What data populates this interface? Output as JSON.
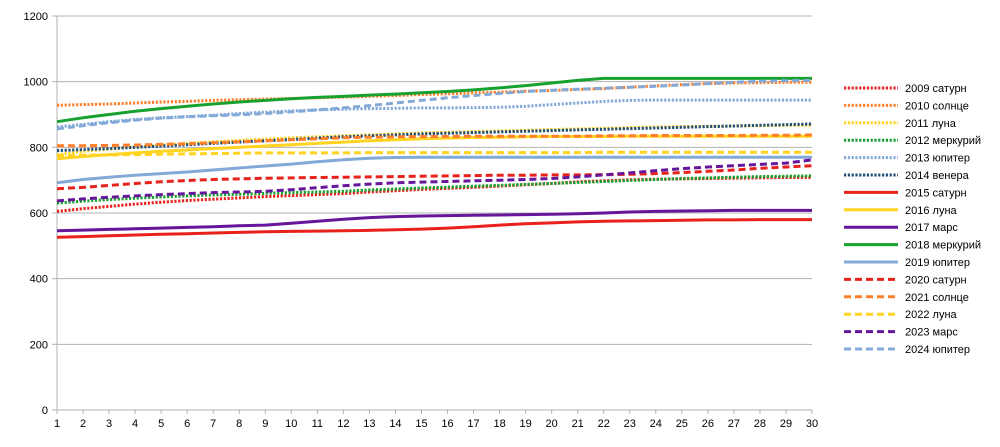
{
  "chart_data": {
    "type": "line",
    "title": "",
    "xlabel": "",
    "ylabel": "",
    "x": [
      1,
      2,
      3,
      4,
      5,
      6,
      7,
      8,
      9,
      10,
      11,
      12,
      13,
      14,
      15,
      16,
      17,
      18,
      19,
      20,
      21,
      22,
      23,
      24,
      25,
      26,
      27,
      28,
      29,
      30
    ],
    "xlim": [
      1,
      30
    ],
    "ylim": [
      0,
      1200
    ],
    "yticks": [
      0,
      200,
      400,
      600,
      800,
      1000,
      1200
    ],
    "grid": "horizontal",
    "legend_position": "right",
    "series": [
      {
        "name": "2009 сатурн",
        "color": "#e8211b",
        "style": "dotted",
        "values": [
          605,
          613,
          620,
          627,
          633,
          638,
          642,
          646,
          650,
          653,
          656,
          659,
          664,
          668,
          672,
          675,
          678,
          682,
          686,
          690,
          695,
          698,
          701,
          703,
          704,
          705,
          706,
          707,
          708,
          708
        ]
      },
      {
        "name": "2010 солнце",
        "color": "#ff7f2a",
        "style": "dotted",
        "values": [
          928,
          930,
          932,
          935,
          938,
          940,
          943,
          945,
          947,
          949,
          951,
          953,
          955,
          958,
          961,
          963,
          966,
          968,
          971,
          973,
          976,
          979,
          983,
          987,
          991,
          994,
          996,
          997,
          998,
          998
        ]
      },
      {
        "name": "2011 луна",
        "color": "#ffd320",
        "style": "dotted",
        "values": [
          777,
          788,
          795,
          801,
          807,
          812,
          817,
          821,
          825,
          829,
          832,
          835,
          838,
          841,
          844,
          846,
          848,
          850,
          852,
          854,
          856,
          858,
          860,
          862,
          863,
          864,
          865,
          866,
          867,
          867
        ]
      },
      {
        "name": "2012 меркурий",
        "color": "#17a12e",
        "style": "dotted",
        "values": [
          630,
          636,
          641,
          645,
          649,
          652,
          655,
          657,
          660,
          662,
          664,
          666,
          670,
          673,
          676,
          679,
          682,
          684,
          687,
          690,
          693,
          696,
          699,
          702,
          705,
          707,
          709,
          711,
          712,
          713
        ]
      },
      {
        "name": "2013 юпитер",
        "color": "#83a9d8",
        "style": "dotted",
        "values": [
          862,
          870,
          878,
          885,
          890,
          894,
          898,
          903,
          907,
          911,
          914,
          916,
          918,
          919,
          920,
          920,
          921,
          922,
          925,
          930,
          935,
          940,
          943,
          944,
          944,
          944,
          944,
          944,
          944,
          944
        ]
      },
      {
        "name": "2014 венера",
        "color": "#1f4e79",
        "style": "dotted",
        "values": [
          790,
          793,
          796,
          800,
          804,
          808,
          812,
          816,
          820,
          824,
          828,
          832,
          835,
          838,
          841,
          843,
          845,
          847,
          849,
          851,
          853,
          855,
          857,
          859,
          861,
          863,
          865,
          867,
          869,
          871
        ]
      },
      {
        "name": "2015 сатурн",
        "color": "#e8211b",
        "style": "solid",
        "values": [
          526,
          528,
          531,
          533,
          535,
          537,
          539,
          541,
          543,
          544,
          545,
          546,
          547,
          549,
          551,
          554,
          558,
          563,
          567,
          570,
          573,
          575,
          576,
          577,
          578,
          579,
          579,
          580,
          580,
          580
        ]
      },
      {
        "name": "2016 луна",
        "color": "#ffd320",
        "style": "solid",
        "values": [
          765,
          772,
          778,
          783,
          788,
          792,
          796,
          800,
          804,
          808,
          812,
          816,
          820,
          823,
          826,
          828,
          830,
          831,
          832,
          833,
          833,
          833,
          834,
          834,
          834,
          834,
          834,
          834,
          834,
          834
        ]
      },
      {
        "name": "2017 марс",
        "color": "#66169b",
        "style": "solid",
        "values": [
          546,
          548,
          550,
          552,
          554,
          556,
          558,
          561,
          563,
          569,
          575,
          581,
          586,
          589,
          591,
          592,
          593,
          594,
          595,
          596,
          598,
          600,
          603,
          605,
          606,
          607,
          608,
          608,
          608,
          608
        ]
      },
      {
        "name": "2018 меркурий",
        "color": "#17a12e",
        "style": "solid",
        "values": [
          878,
          890,
          900,
          910,
          918,
          925,
          932,
          938,
          943,
          948,
          952,
          955,
          959,
          962,
          966,
          970,
          975,
          981,
          988,
          996,
          1004,
          1010,
          1010,
          1010,
          1010,
          1010,
          1010,
          1010,
          1010,
          1010
        ]
      },
      {
        "name": "2019 юпитер",
        "color": "#83a9d8",
        "style": "solid",
        "values": [
          692,
          702,
          709,
          715,
          720,
          725,
          731,
          737,
          743,
          749,
          756,
          762,
          767,
          769,
          770,
          770,
          770,
          770,
          770,
          770,
          770,
          770,
          770,
          770,
          770,
          770,
          770,
          770,
          770,
          770
        ]
      },
      {
        "name": "2020 сатурн",
        "color": "#e8211b",
        "style": "dashed",
        "values": [
          674,
          678,
          684,
          690,
          695,
          699,
          702,
          704,
          706,
          707,
          708,
          709,
          710,
          711,
          712,
          713,
          714,
          715,
          715,
          716,
          716,
          717,
          718,
          720,
          723,
          727,
          731,
          736,
          740,
          744
        ]
      },
      {
        "name": "2021 солнце",
        "color": "#ff7f2a",
        "style": "dashed",
        "values": [
          805,
          805,
          806,
          807,
          809,
          811,
          814,
          817,
          820,
          823,
          826,
          829,
          831,
          832,
          833,
          833,
          834,
          834,
          834,
          834,
          834,
          835,
          835,
          836,
          836,
          836,
          836,
          837,
          837,
          838
        ]
      },
      {
        "name": "2022 луна",
        "color": "#ffd320",
        "style": "dashed",
        "values": [
          775,
          776,
          777,
          778,
          779,
          780,
          781,
          782,
          783,
          783,
          783,
          783,
          784,
          784,
          784,
          784,
          784,
          784,
          784,
          784,
          784,
          785,
          785,
          785,
          785,
          785,
          785,
          785,
          785,
          785
        ]
      },
      {
        "name": "2023 марс",
        "color": "#66169b",
        "style": "dashed",
        "values": [
          637,
          643,
          648,
          652,
          656,
          659,
          662,
          664,
          666,
          671,
          677,
          683,
          688,
          692,
          694,
          696,
          698,
          700,
          702,
          705,
          710,
          716,
          722,
          729,
          735,
          740,
          744,
          748,
          752,
          762
        ]
      },
      {
        "name": "2024 юпитер",
        "color": "#83a9d8",
        "style": "dashed",
        "values": [
          856,
          866,
          875,
          883,
          889,
          893,
          896,
          899,
          903,
          908,
          914,
          920,
          927,
          935,
          943,
          951,
          958,
          964,
          970,
          974,
          977,
          980,
          983,
          986,
          990,
          994,
          998,
          1001,
          1003,
          1004
        ]
      }
    ]
  }
}
